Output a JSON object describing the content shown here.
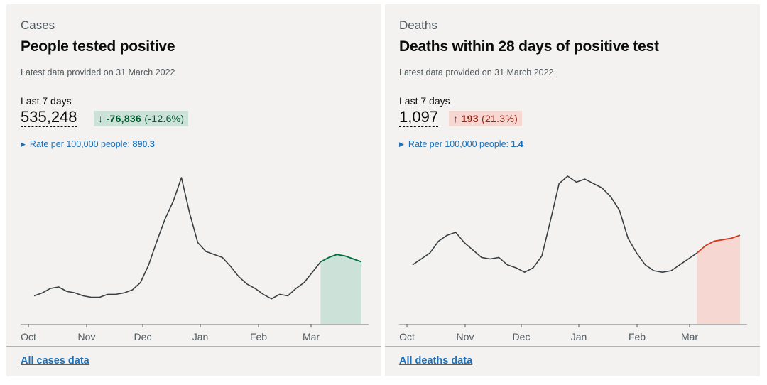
{
  "cards": [
    {
      "caption": "Cases",
      "title": "People tested positive",
      "updated": "Latest data provided on 31 March 2022",
      "period_label": "Last 7 days",
      "value": "535,248",
      "change_arrow": "↓",
      "change_value": "-76,836",
      "change_pct": "(-12.6%)",
      "change_direction": "down",
      "rate_label": "Rate per 100,000 people:",
      "rate_value": "890.3",
      "link": "All cases data"
    },
    {
      "caption": "Deaths",
      "title": "Deaths within 28 days of positive test",
      "updated": "Latest data provided on 31 March 2022",
      "period_label": "Last 7 days",
      "value": "1,097",
      "change_arrow": "↑",
      "change_value": "193",
      "change_pct": "(21.3%)",
      "change_direction": "up",
      "rate_label": "Rate per 100,000 people:",
      "rate_value": "1.4",
      "link": "All deaths data"
    }
  ],
  "colors": {
    "line": "#383f43",
    "cases_highlight_line": "#00703c",
    "cases_highlight_fill": "#cce2d8",
    "deaths_highlight_line": "#d4351c",
    "deaths_highlight_fill": "#f6d7d2",
    "link": "#1d70b8",
    "card_bg": "#f3f2f1"
  },
  "chart_data": [
    {
      "type": "line",
      "x_start": "2021-10-01",
      "x_step": "7 days",
      "ylim": [
        0,
        100
      ],
      "x_ticks": [
        "Oct",
        "Nov",
        "Dec",
        "Jan",
        "Feb",
        "Mar"
      ],
      "values": [
        19,
        21,
        24,
        25,
        22,
        21,
        19,
        18,
        18,
        20,
        20,
        21,
        23,
        28,
        40,
        56,
        71,
        83,
        99,
        75,
        55,
        49,
        47,
        45,
        39,
        32,
        27,
        24,
        20,
        17,
        20,
        19,
        24,
        28,
        35,
        42,
        45,
        47,
        46,
        44,
        42
      ],
      "highlight_from_index": 35
    },
    {
      "type": "line",
      "x_start": "2021-10-01",
      "x_step": "7 days",
      "ylim": [
        0,
        100
      ],
      "x_ticks": [
        "Oct",
        "Nov",
        "Dec",
        "Jan",
        "Feb",
        "Mar"
      ],
      "values": [
        40,
        44,
        48,
        56,
        60,
        62,
        55,
        50,
        45,
        44,
        45,
        40,
        38,
        35,
        38,
        46,
        70,
        95,
        100,
        96,
        98,
        95,
        92,
        86,
        77,
        58,
        48,
        40,
        36,
        35,
        36,
        40,
        44,
        48,
        53,
        56,
        57,
        58,
        60
      ],
      "highlight_from_index": 33
    }
  ]
}
